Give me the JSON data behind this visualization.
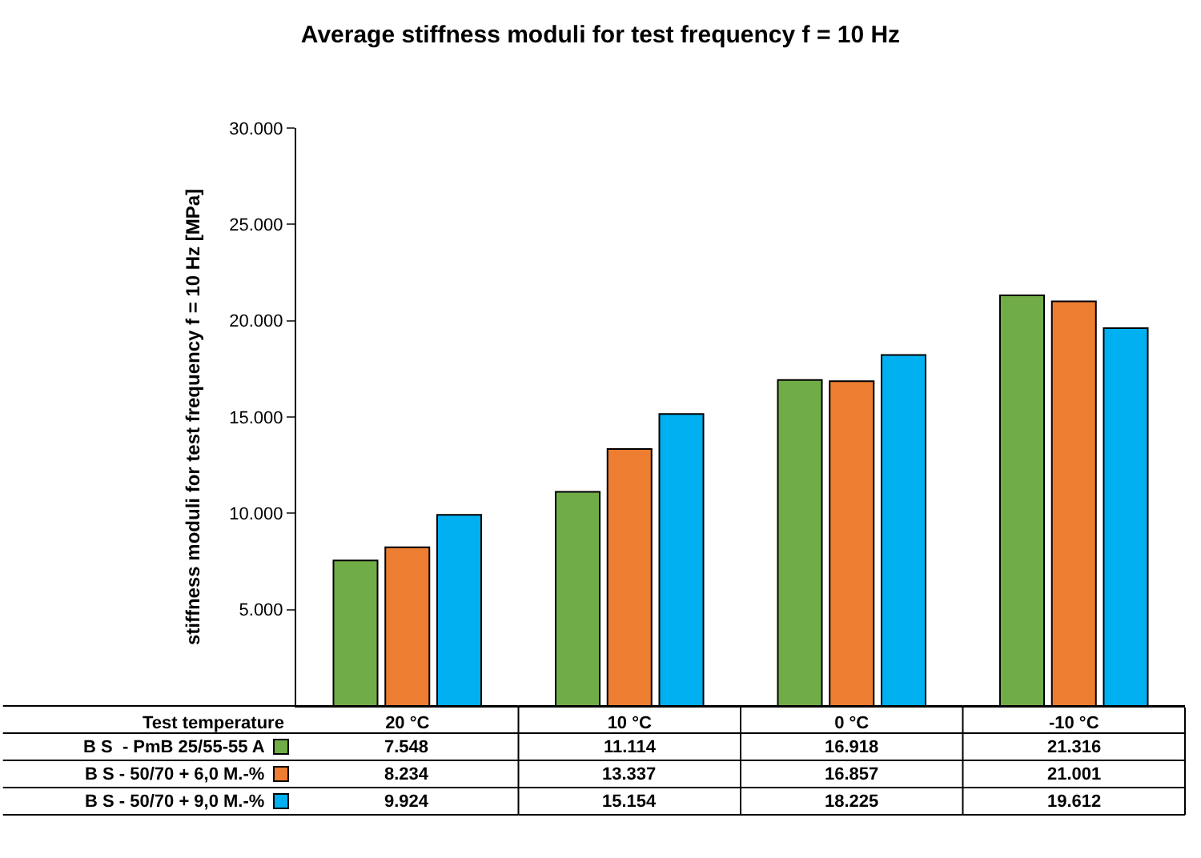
{
  "chart_data": {
    "type": "bar",
    "title": "Average stiffness moduli for test frequency f = 10 Hz",
    "ylabel": "stiffness moduli for test frequency f = 10 Hz [MPa]",
    "xlabel": "Test temperature",
    "categories": [
      "20 °C",
      "10 °C",
      "0 °C",
      "-10 °C"
    ],
    "series": [
      {
        "name": "B S  - PmB 25/55-55 A",
        "color": "#70ad47",
        "values": [
          7548,
          11114,
          16918,
          21316
        ],
        "value_labels": [
          "7.548",
          "11.114",
          "16.918",
          "21.316"
        ]
      },
      {
        "name": "B S - 50/70 + 6,0 M.-%",
        "color": "#ed7d31",
        "values": [
          8234,
          13337,
          16857,
          21001
        ],
        "value_labels": [
          "8.234",
          "13.337",
          "16.857",
          "21.001"
        ]
      },
      {
        "name": "B S - 50/70 + 9,0 M.-%",
        "color": "#00b0f0",
        "values": [
          9924,
          15154,
          18225,
          19612
        ],
        "value_labels": [
          "9.924",
          "15.154",
          "18.225",
          "19.612"
        ]
      }
    ],
    "ylim": [
      0,
      30000
    ],
    "yticks": [
      {
        "value": 5000,
        "label": "5.000"
      },
      {
        "value": 10000,
        "label": "10.000"
      },
      {
        "value": 15000,
        "label": "15.000"
      },
      {
        "value": 20000,
        "label": "20.000"
      },
      {
        "value": 25000,
        "label": "25.000"
      },
      {
        "value": 30000,
        "label": "30.000"
      }
    ],
    "legend": "bottom left"
  }
}
